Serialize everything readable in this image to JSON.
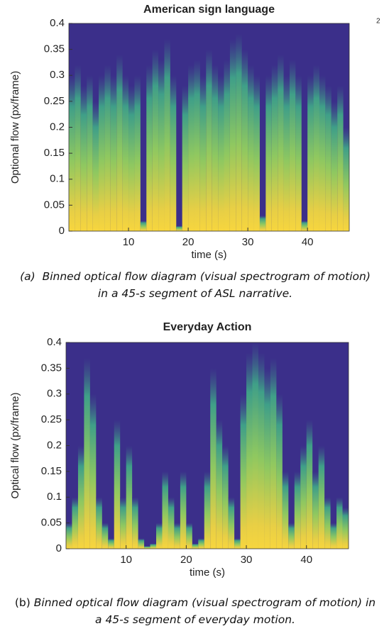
{
  "page_number": "2",
  "chart_data": [
    {
      "type": "spectrogram",
      "title": "American sign language",
      "x_label": "time (s)",
      "y_label": "Optional flow (px/frame)",
      "xlim": [
        0,
        47
      ],
      "ylim": [
        0,
        0.4
      ],
      "xticks": [
        10,
        20,
        30,
        40
      ],
      "yticks": [
        0,
        0.05,
        0.1,
        0.15,
        0.2,
        0.25,
        0.3,
        0.35,
        0.4
      ],
      "background": "#3b2f8a",
      "x": [
        0.5,
        1.5,
        2.5,
        3.5,
        4.5,
        5.5,
        6.5,
        7.5,
        8.5,
        9.5,
        10.5,
        11.5,
        12.5,
        13.5,
        14.5,
        15.5,
        16.5,
        17.5,
        18.5,
        19.5,
        20.5,
        21.5,
        22.5,
        23.5,
        24.5,
        25.5,
        26.5,
        27.5,
        28.5,
        29.5,
        30.5,
        31.5,
        32.5,
        33.5,
        34.5,
        35.5,
        36.5,
        37.5,
        38.5,
        39.5,
        40.5,
        41.5,
        42.5,
        43.5,
        44.5,
        45.5,
        46.5
      ],
      "values": [
        0.3,
        0.32,
        0.28,
        0.3,
        0.25,
        0.3,
        0.32,
        0.3,
        0.34,
        0.3,
        0.28,
        0.3,
        0.02,
        0.32,
        0.35,
        0.33,
        0.37,
        0.3,
        0.01,
        0.28,
        0.32,
        0.33,
        0.3,
        0.35,
        0.32,
        0.3,
        0.33,
        0.37,
        0.38,
        0.35,
        0.32,
        0.3,
        0.03,
        0.3,
        0.32,
        0.34,
        0.3,
        0.33,
        0.3,
        0.02,
        0.3,
        0.32,
        0.3,
        0.28,
        0.25,
        0.28,
        0.2
      ],
      "caption_label": "(a)",
      "caption": "Binned optical flow diagram (visual spectrogram of motion) in a 45-s segment of ASL narrative."
    },
    {
      "type": "spectrogram",
      "title": "Everyday Action",
      "x_label": "time (s)",
      "y_label": "Optical flow (px/frame)",
      "xlim": [
        0,
        47
      ],
      "ylim": [
        0,
        0.4
      ],
      "xticks": [
        10,
        20,
        30,
        40
      ],
      "yticks": [
        0,
        0.05,
        0.1,
        0.15,
        0.2,
        0.25,
        0.3,
        0.35,
        0.4
      ],
      "background": "#3b2f8a",
      "x": [
        0.5,
        1.5,
        2.5,
        3.5,
        4.5,
        5.5,
        6.5,
        7.5,
        8.5,
        9.5,
        10.5,
        11.5,
        12.5,
        13.5,
        14.5,
        15.5,
        16.5,
        17.5,
        18.5,
        19.5,
        20.5,
        21.5,
        22.5,
        23.5,
        24.5,
        25.5,
        26.5,
        27.5,
        28.5,
        29.5,
        30.5,
        31.5,
        32.5,
        33.5,
        34.5,
        35.5,
        36.5,
        37.5,
        38.5,
        39.5,
        40.5,
        41.5,
        42.5,
        43.5,
        44.5,
        45.5,
        46.5
      ],
      "values": [
        0.05,
        0.1,
        0.2,
        0.37,
        0.3,
        0.1,
        0.05,
        0.02,
        0.25,
        0.1,
        0.2,
        0.1,
        0.02,
        0.005,
        0.01,
        0.05,
        0.15,
        0.1,
        0.05,
        0.15,
        0.05,
        0.01,
        0.02,
        0.15,
        0.35,
        0.25,
        0.2,
        0.1,
        0.02,
        0.3,
        0.38,
        0.4,
        0.38,
        0.35,
        0.37,
        0.3,
        0.15,
        0.05,
        0.15,
        0.2,
        0.25,
        0.15,
        0.2,
        0.1,
        0.05,
        0.1,
        0.08
      ],
      "caption_label": "(b)",
      "caption": "Binned optical flow diagram (visual spectrogram of motion) in a 45-s segment of everyday motion."
    }
  ]
}
